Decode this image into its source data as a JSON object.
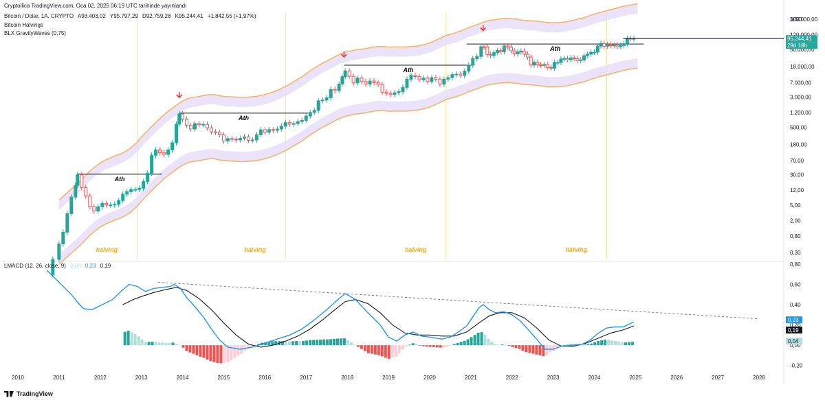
{
  "header": {
    "publisher": "Cryptollica TradingView.com, Oca 02, 2025 06:19 UTC tarihinde yayınlandı",
    "symbol": "Bitcoin / Dolar, 1A, CRYPTO",
    "ohlc": {
      "open": "A93.403,02",
      "high": "Y95.797,29",
      "low": "D92.759,28",
      "close": "K95.244,41",
      "change": "+1.842,55 (+1,97%)"
    },
    "indicators": [
      "Bitcoin Halvings",
      "BLX GravityWaves (0,75)"
    ]
  },
  "colors": {
    "up": "#26a69a",
    "down": "#ef5350",
    "band_fill": "#e8def8",
    "band_line": "#f5b56b",
    "halving_line": "#f7e08a",
    "halving_text": "#f5a623",
    "macd_line": "#2196f3",
    "signal_line": "#131722",
    "hist_up_strong": "#26a69a",
    "hist_up_weak": "#b2dfdb",
    "hist_down_strong": "#ef5350",
    "hist_down_weak": "#ffcdd2",
    "arrow": "#e53935"
  },
  "chart_data": [
    {
      "type": "candlestick",
      "title": "Bitcoin / Dolar, 1A, CRYPTO",
      "price_axis_label": "USD",
      "y_scale": "log",
      "y_ticks": [
        "300.000,00",
        "120.000,00",
        "50.000,00",
        "18.000,00",
        "7.000,00",
        "3.000,00",
        "1.200,00",
        "500,00",
        "180,00",
        "70,00",
        "30,00",
        "12,00",
        "5,00",
        "2,00",
        "0,80",
        "0,30"
      ],
      "y_tick_values": [
        300000,
        120000,
        50000,
        18000,
        7000,
        3000,
        1200,
        500,
        180,
        70,
        30,
        12,
        5,
        2,
        0.8,
        0.3
      ],
      "last_price_label": "95.244,41",
      "last_price_value": 95244.41,
      "countdown": "29d 18h",
      "halvings": [
        2012.9,
        2016.5,
        2020.4,
        2024.3
      ],
      "halving_label": "halving",
      "ath_lines": [
        {
          "label": "Ath",
          "price": 31,
          "from": 2011.45,
          "to": 2013.5
        },
        {
          "label": "Ath",
          "price": 1150,
          "from": 2013.92,
          "to": 2017.05
        },
        {
          "label": "Ath",
          "price": 19700,
          "from": 2017.92,
          "to": 2021.05
        },
        {
          "label": "Ath",
          "price": 69000,
          "from": 2020.9,
          "to": 2025.2
        }
      ],
      "peak_markers": [
        2013.92,
        2017.92,
        2021.3
      ],
      "trend_points": [
        [
          2010.7,
          0.08
        ],
        [
          2010.85,
          0.2
        ],
        [
          2011.0,
          0.5
        ],
        [
          2011.1,
          1.0
        ],
        [
          2011.2,
          3.0
        ],
        [
          2011.3,
          8.0
        ],
        [
          2011.4,
          16
        ],
        [
          2011.45,
          30
        ],
        [
          2011.55,
          14
        ],
        [
          2011.65,
          8.5
        ],
        [
          2011.75,
          4.5
        ],
        [
          2011.85,
          3.5
        ],
        [
          2011.95,
          4.5
        ],
        [
          2012.05,
          5.5
        ],
        [
          2012.15,
          5.0
        ],
        [
          2012.25,
          5.0
        ],
        [
          2012.35,
          5.2
        ],
        [
          2012.45,
          6.5
        ],
        [
          2012.55,
          9.5
        ],
        [
          2012.65,
          11
        ],
        [
          2012.75,
          12.5
        ],
        [
          2012.85,
          12.5
        ],
        [
          2012.95,
          13.5
        ],
        [
          2013.05,
          20
        ],
        [
          2013.15,
          33
        ],
        [
          2013.25,
          95
        ],
        [
          2013.35,
          130
        ],
        [
          2013.45,
          110
        ],
        [
          2013.55,
          100
        ],
        [
          2013.65,
          130
        ],
        [
          2013.75,
          200
        ],
        [
          2013.85,
          600
        ],
        [
          2013.92,
          1100
        ],
        [
          2014.0,
          800
        ],
        [
          2014.1,
          560
        ],
        [
          2014.2,
          450
        ],
        [
          2014.3,
          620
        ],
        [
          2014.4,
          580
        ],
        [
          2014.5,
          590
        ],
        [
          2014.6,
          480
        ],
        [
          2014.7,
          380
        ],
        [
          2014.8,
          370
        ],
        [
          2014.9,
          320
        ],
        [
          2015.0,
          220
        ],
        [
          2015.1,
          255
        ],
        [
          2015.2,
          245
        ],
        [
          2015.3,
          235
        ],
        [
          2015.4,
          260
        ],
        [
          2015.5,
          280
        ],
        [
          2015.6,
          230
        ],
        [
          2015.7,
          235
        ],
        [
          2015.8,
          320
        ],
        [
          2015.9,
          430
        ],
        [
          2016.0,
          370
        ],
        [
          2016.1,
          435
        ],
        [
          2016.2,
          415
        ],
        [
          2016.3,
          450
        ],
        [
          2016.4,
          530
        ],
        [
          2016.5,
          660
        ],
        [
          2016.6,
          600
        ],
        [
          2016.7,
          620
        ],
        [
          2016.8,
          700
        ],
        [
          2016.9,
          750
        ],
        [
          2017.0,
          970
        ],
        [
          2017.1,
          1200
        ],
        [
          2017.2,
          1350
        ],
        [
          2017.3,
          2400
        ],
        [
          2017.4,
          2500
        ],
        [
          2017.5,
          2850
        ],
        [
          2017.6,
          4700
        ],
        [
          2017.7,
          4350
        ],
        [
          2017.8,
          6400
        ],
        [
          2017.88,
          10000
        ],
        [
          2017.95,
          14000
        ],
        [
          2018.05,
          10200
        ],
        [
          2018.15,
          6900
        ],
        [
          2018.25,
          9200
        ],
        [
          2018.35,
          7500
        ],
        [
          2018.45,
          6400
        ],
        [
          2018.55,
          7700
        ],
        [
          2018.65,
          7000
        ],
        [
          2018.75,
          6300
        ],
        [
          2018.85,
          4000
        ],
        [
          2018.95,
          3700
        ],
        [
          2019.05,
          3450
        ],
        [
          2019.15,
          3850
        ],
        [
          2019.25,
          4100
        ],
        [
          2019.35,
          5300
        ],
        [
          2019.45,
          8600
        ],
        [
          2019.55,
          10800
        ],
        [
          2019.65,
          10100
        ],
        [
          2019.75,
          8300
        ],
        [
          2019.85,
          9200
        ],
        [
          2019.95,
          7500
        ],
        [
          2020.05,
          9400
        ],
        [
          2020.15,
          8600
        ],
        [
          2020.25,
          6400
        ],
        [
          2020.35,
          8600
        ],
        [
          2020.45,
          9450
        ],
        [
          2020.55,
          11300
        ],
        [
          2020.65,
          11600
        ],
        [
          2020.75,
          10800
        ],
        [
          2020.85,
          13800
        ],
        [
          2020.95,
          19700
        ],
        [
          2021.05,
          29000
        ],
        [
          2021.15,
          33000
        ],
        [
          2021.25,
          58700
        ],
        [
          2021.32,
          57700
        ],
        [
          2021.4,
          37300
        ],
        [
          2021.48,
          35000
        ],
        [
          2021.56,
          41500
        ],
        [
          2021.65,
          47100
        ],
        [
          2021.73,
          43800
        ],
        [
          2021.81,
          61300
        ],
        [
          2021.9,
          57000
        ],
        [
          2021.98,
          46200
        ],
        [
          2022.06,
          38500
        ],
        [
          2022.14,
          43200
        ],
        [
          2022.22,
          45500
        ],
        [
          2022.3,
          37700
        ],
        [
          2022.38,
          31800
        ],
        [
          2022.46,
          19900
        ],
        [
          2022.54,
          23300
        ],
        [
          2022.62,
          20000
        ],
        [
          2022.7,
          19400
        ],
        [
          2022.78,
          20500
        ],
        [
          2022.86,
          17200
        ],
        [
          2022.95,
          16500
        ],
        [
          2023.03,
          23100
        ],
        [
          2023.11,
          23100
        ],
        [
          2023.19,
          28400
        ],
        [
          2023.27,
          29200
        ],
        [
          2023.35,
          27200
        ],
        [
          2023.43,
          30500
        ],
        [
          2023.51,
          29200
        ],
        [
          2023.59,
          25900
        ],
        [
          2023.67,
          26900
        ],
        [
          2023.75,
          34500
        ],
        [
          2023.83,
          37700
        ],
        [
          2023.92,
          42300
        ],
        [
          2024.0,
          42500
        ],
        [
          2024.08,
          61100
        ],
        [
          2024.16,
          71300
        ],
        [
          2024.24,
          60600
        ],
        [
          2024.32,
          67500
        ],
        [
          2024.4,
          62700
        ],
        [
          2024.48,
          64600
        ],
        [
          2024.56,
          58900
        ],
        [
          2024.64,
          63300
        ],
        [
          2024.72,
          70200
        ],
        [
          2024.8,
          96400
        ],
        [
          2024.88,
          93400
        ],
        [
          2024.96,
          95244
        ]
      ],
      "macd": {
        "label": "LMACD (12, 26, close, 9)",
        "values_label": [
          "0,04",
          "0,23",
          "0,19"
        ],
        "y_ticks": [
          "0,80",
          "0,60",
          "0,40",
          "0,20",
          "0,00",
          "-0,20"
        ],
        "y_tick_values": [
          0.8,
          0.6,
          0.4,
          0.2,
          0,
          -0.2
        ],
        "badges": [
          "0,23",
          "0,19",
          "0,04"
        ],
        "macd_line": [
          [
            2010.7,
            0.74
          ],
          [
            2011.0,
            0.62
          ],
          [
            2011.3,
            0.5
          ],
          [
            2011.5,
            0.4
          ],
          [
            2011.6,
            0.36
          ],
          [
            2011.8,
            0.35
          ],
          [
            2012.0,
            0.39
          ],
          [
            2012.3,
            0.45
          ],
          [
            2012.5,
            0.53
          ],
          [
            2012.7,
            0.6
          ],
          [
            2012.9,
            0.58
          ],
          [
            2013.1,
            0.53
          ],
          [
            2013.3,
            0.56
          ],
          [
            2013.5,
            0.57
          ],
          [
            2013.7,
            0.58
          ],
          [
            2013.8,
            0.6
          ],
          [
            2013.95,
            0.56
          ],
          [
            2014.1,
            0.47
          ],
          [
            2014.3,
            0.38
          ],
          [
            2014.5,
            0.28
          ],
          [
            2014.7,
            0.16
          ],
          [
            2014.9,
            0.05
          ],
          [
            2015.1,
            -0.02
          ],
          [
            2015.4,
            -0.04
          ],
          [
            2015.7,
            -0.02
          ],
          [
            2016.0,
            0.02
          ],
          [
            2016.3,
            0.06
          ],
          [
            2016.6,
            0.1
          ],
          [
            2016.9,
            0.16
          ],
          [
            2017.2,
            0.25
          ],
          [
            2017.5,
            0.35
          ],
          [
            2017.8,
            0.46
          ],
          [
            2017.95,
            0.51
          ],
          [
            2018.2,
            0.45
          ],
          [
            2018.5,
            0.32
          ],
          [
            2018.8,
            0.2
          ],
          [
            2019.0,
            0.08
          ],
          [
            2019.2,
            0.04
          ],
          [
            2019.4,
            0.1
          ],
          [
            2019.6,
            0.13
          ],
          [
            2019.8,
            0.09
          ],
          [
            2020.0,
            0.08
          ],
          [
            2020.3,
            0.06
          ],
          [
            2020.5,
            0.08
          ],
          [
            2020.7,
            0.13
          ],
          [
            2020.9,
            0.19
          ],
          [
            2021.05,
            0.28
          ],
          [
            2021.2,
            0.37
          ],
          [
            2021.3,
            0.4
          ],
          [
            2021.45,
            0.35
          ],
          [
            2021.6,
            0.32
          ],
          [
            2021.8,
            0.33
          ],
          [
            2022.0,
            0.3
          ],
          [
            2022.2,
            0.24
          ],
          [
            2022.4,
            0.15
          ],
          [
            2022.6,
            0.06
          ],
          [
            2022.8,
            -0.04
          ],
          [
            2023.0,
            -0.04
          ],
          [
            2023.2,
            -0.01
          ],
          [
            2023.5,
            0.0
          ],
          [
            2023.7,
            0.01
          ],
          [
            2023.9,
            0.05
          ],
          [
            2024.1,
            0.12
          ],
          [
            2024.3,
            0.17
          ],
          [
            2024.5,
            0.18
          ],
          [
            2024.7,
            0.18
          ],
          [
            2024.96,
            0.23
          ]
        ],
        "signal_line": [
          [
            2012.55,
            0.4
          ],
          [
            2012.8,
            0.45
          ],
          [
            2013.0,
            0.48
          ],
          [
            2013.3,
            0.52
          ],
          [
            2013.6,
            0.55
          ],
          [
            2013.85,
            0.57
          ],
          [
            2014.1,
            0.54
          ],
          [
            2014.4,
            0.46
          ],
          [
            2014.7,
            0.35
          ],
          [
            2015.0,
            0.22
          ],
          [
            2015.3,
            0.1
          ],
          [
            2015.6,
            0.01
          ],
          [
            2015.9,
            -0.02
          ],
          [
            2016.2,
            0.0
          ],
          [
            2016.5,
            0.04
          ],
          [
            2016.8,
            0.09
          ],
          [
            2017.1,
            0.16
          ],
          [
            2017.4,
            0.25
          ],
          [
            2017.7,
            0.35
          ],
          [
            2017.95,
            0.43
          ],
          [
            2018.2,
            0.45
          ],
          [
            2018.5,
            0.41
          ],
          [
            2018.8,
            0.32
          ],
          [
            2019.1,
            0.2
          ],
          [
            2019.4,
            0.12
          ],
          [
            2019.7,
            0.1
          ],
          [
            2020.0,
            0.1
          ],
          [
            2020.3,
            0.09
          ],
          [
            2020.6,
            0.09
          ],
          [
            2020.9,
            0.13
          ],
          [
            2021.2,
            0.22
          ],
          [
            2021.45,
            0.29
          ],
          [
            2021.7,
            0.32
          ],
          [
            2022.0,
            0.32
          ],
          [
            2022.3,
            0.27
          ],
          [
            2022.6,
            0.17
          ],
          [
            2022.9,
            0.05
          ],
          [
            2023.2,
            -0.01
          ],
          [
            2023.5,
            -0.01
          ],
          [
            2023.8,
            0.02
          ],
          [
            2024.1,
            0.07
          ],
          [
            2024.4,
            0.12
          ],
          [
            2024.7,
            0.15
          ],
          [
            2024.96,
            0.19
          ]
        ],
        "trendline": [
          [
            2013.4,
            0.62
          ],
          [
            2028.0,
            0.26
          ]
        ]
      },
      "x_axis": {
        "ticks": [
          "2010",
          "2011",
          "2012",
          "2013",
          "2014",
          "2015",
          "2016",
          "2017",
          "2018",
          "2019",
          "2020",
          "2021",
          "2022",
          "2023",
          "2024",
          "2025",
          "2026",
          "2027",
          "2028"
        ],
        "range": [
          2009.6,
          2028.6
        ]
      }
    }
  ],
  "footer": {
    "brand": "TradingView"
  }
}
